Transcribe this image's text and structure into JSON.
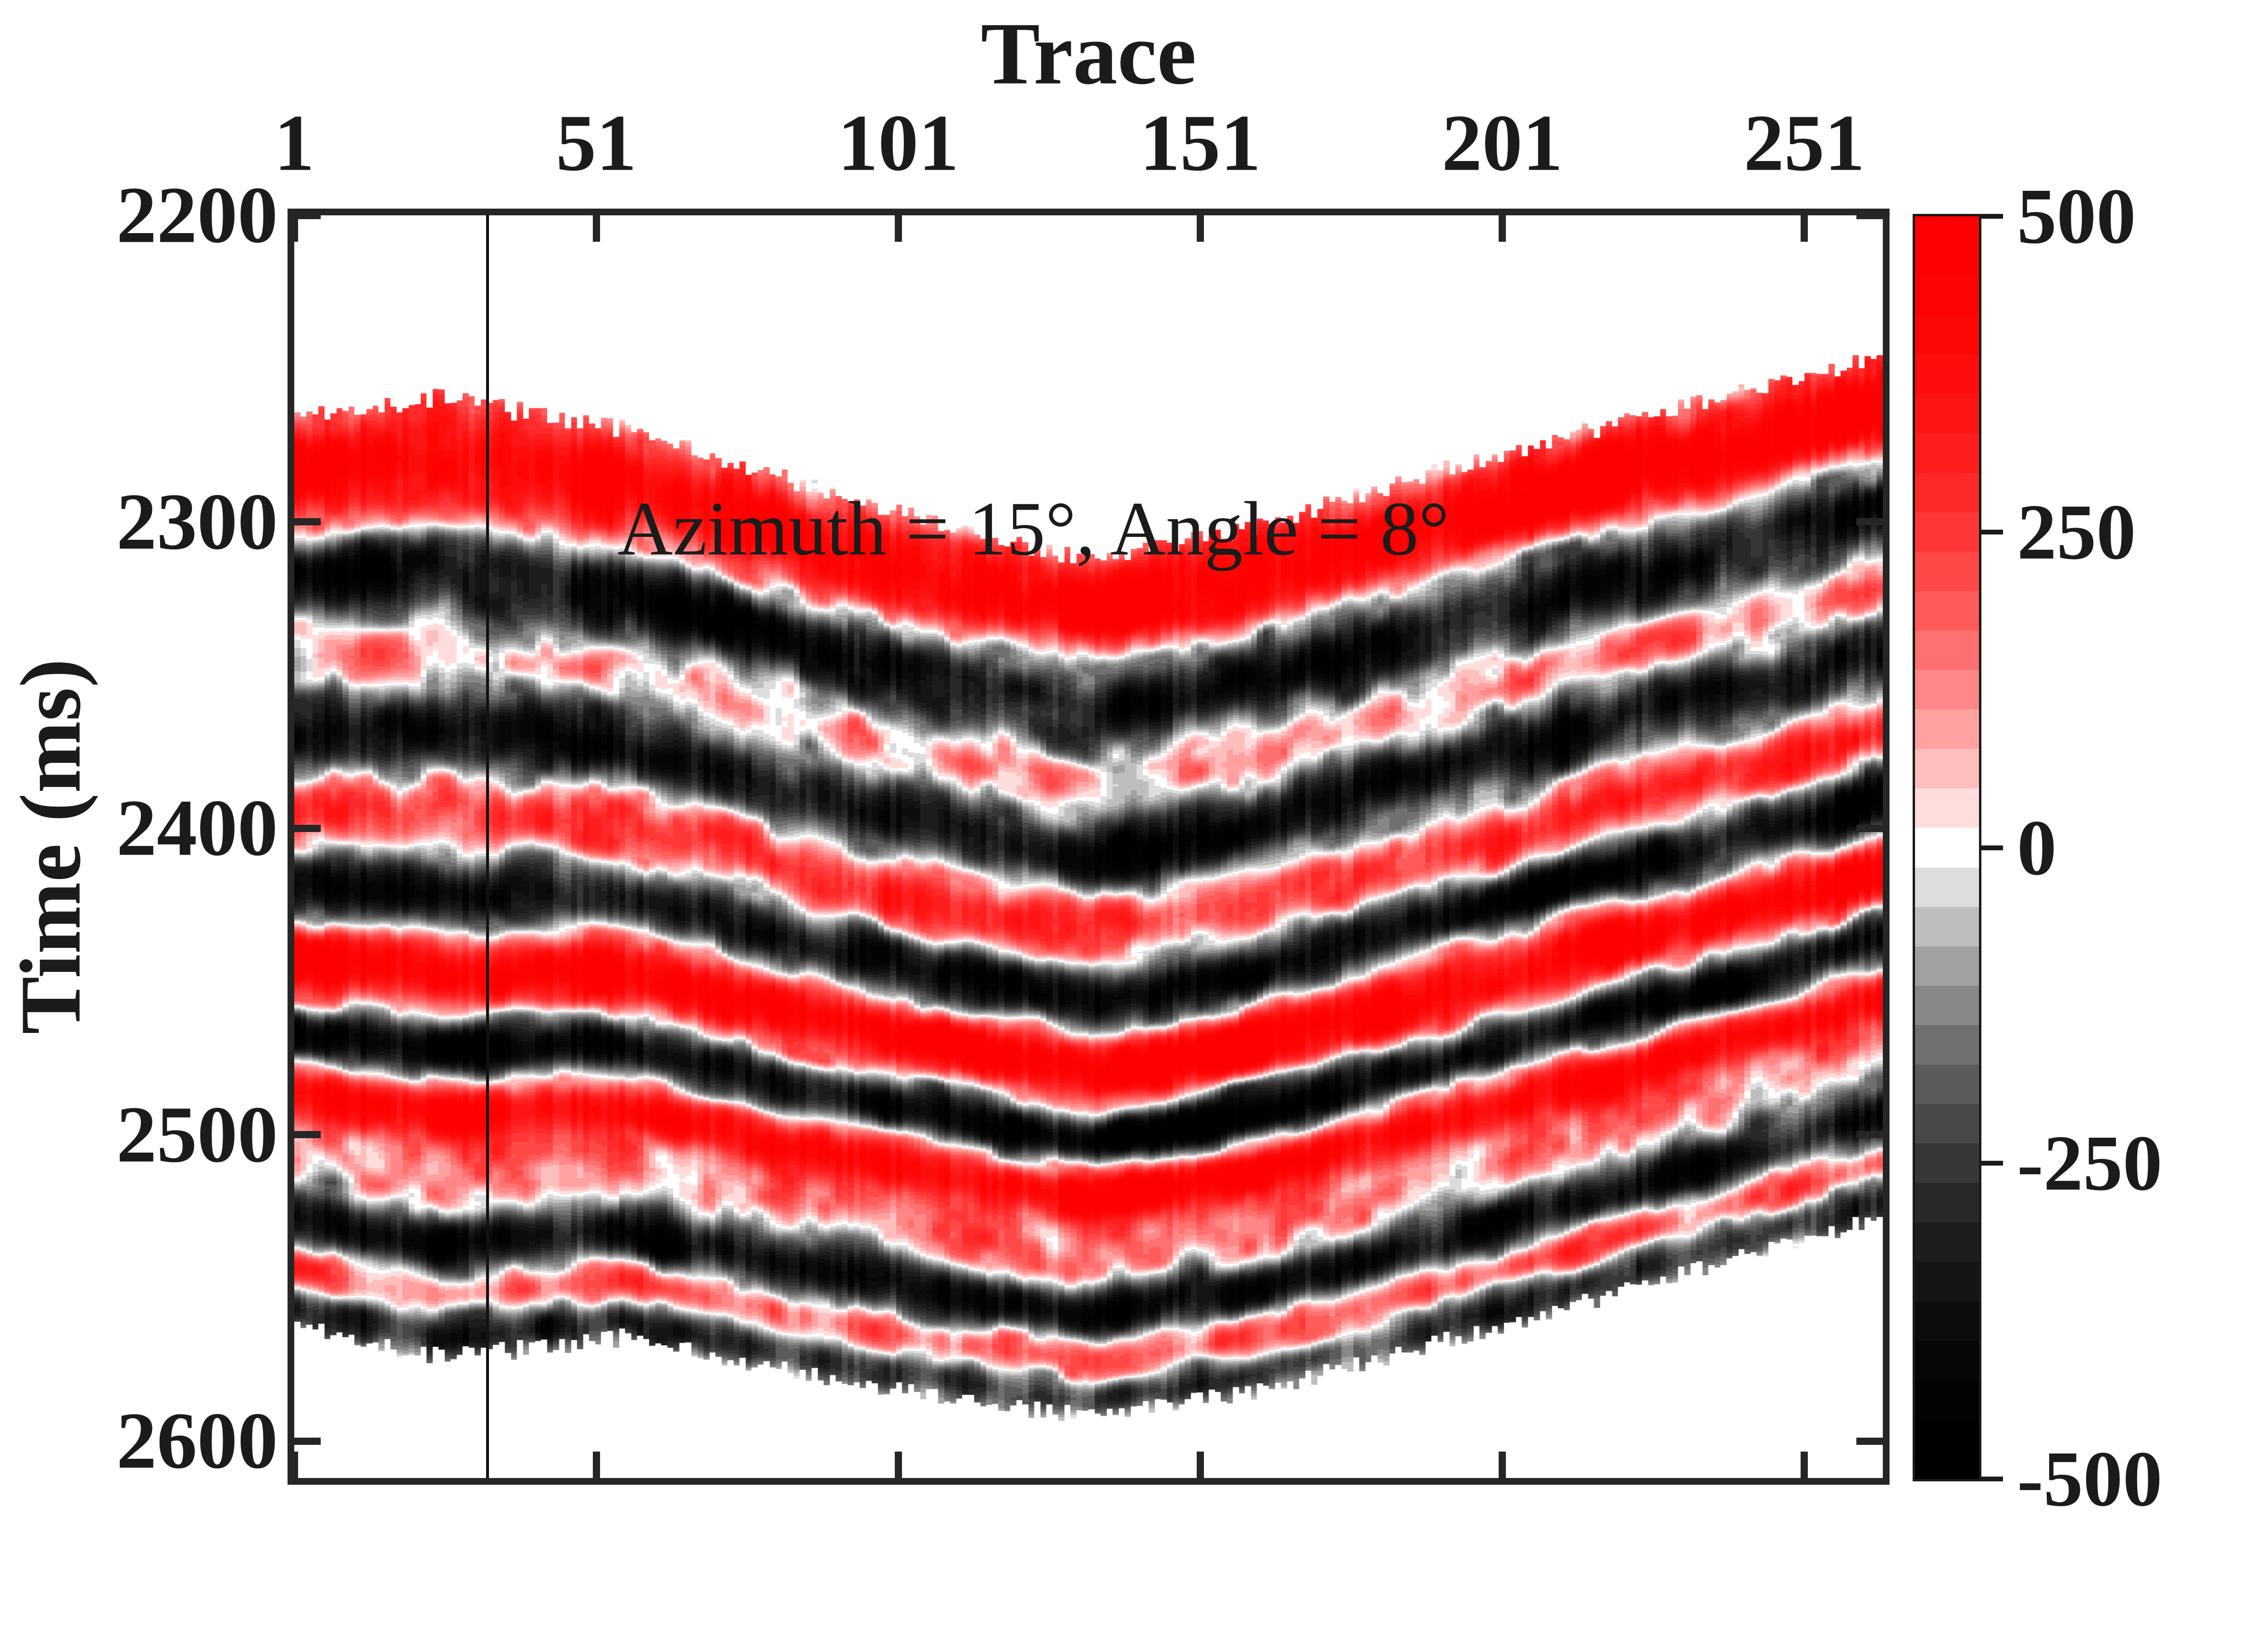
{
  "figure": {
    "background": "#ffffff"
  },
  "title": {
    "text": "Trace"
  },
  "axes": {
    "x_label": "Trace",
    "y_label": "Time (ms)",
    "x_tick_labels": [
      "1",
      "51",
      "101",
      "151",
      "201",
      "251"
    ],
    "x_tick_values": [
      1,
      51,
      101,
      151,
      201,
      251
    ],
    "y_tick_labels": [
      "2200",
      "2300",
      "2400",
      "2500",
      "2600"
    ],
    "y_tick_values": [
      2200,
      2300,
      2400,
      2500,
      2600
    ],
    "xlim": [
      1,
      264
    ],
    "ylim": [
      2200,
      2612
    ]
  },
  "annotation": {
    "text": "Azimuth = 15°, Angle = 8°"
  },
  "cursor": {
    "trace": 33
  },
  "colorbar": {
    "tick_labels": [
      "500",
      "250",
      "0",
      "-250",
      "-500"
    ],
    "tick_values": [
      500,
      250,
      0,
      -250,
      -500
    ],
    "limits": [
      -500,
      500
    ],
    "steps": 32,
    "max_color": "#ff0000",
    "zero_color": "#ffffff",
    "min_color": "#000000"
  },
  "chart_data": {
    "type": "heatmap",
    "title": "Trace",
    "xlabel": "Trace",
    "ylabel": "Time (ms)",
    "x_range": [
      1,
      264
    ],
    "y_range_ms": [
      2200,
      2612
    ],
    "amplitude_range": [
      -500,
      500
    ],
    "annotation": "Azimuth = 15°, Angle = 8°",
    "colormap": "red-white-black (positive red, zero white, negative black), 32 discrete steps",
    "structure": "seismic reflector package between ~2250 and ~2590 ms forming a syncline with vertex near trace 133; limbs rise ~50 ms toward trace 1 and ~68 ms toward trace 264; thin vertical cursor line highlights trace 33",
    "horizon_top_ms": [
      [
        1,
        2270
      ],
      [
        25,
        2264
      ],
      [
        55,
        2274
      ],
      [
        85,
        2292
      ],
      [
        110,
        2306
      ],
      [
        133,
        2317
      ],
      [
        160,
        2306
      ],
      [
        190,
        2288
      ],
      [
        220,
        2272
      ],
      [
        245,
        2260
      ],
      [
        264,
        2250
      ]
    ],
    "horizon_bottom_ms": [
      [
        1,
        2556
      ],
      [
        25,
        2566
      ],
      [
        55,
        2560
      ],
      [
        85,
        2572
      ],
      [
        110,
        2580
      ],
      [
        133,
        2586
      ],
      [
        160,
        2578
      ],
      [
        200,
        2557
      ],
      [
        230,
        2540
      ],
      [
        264,
        2521
      ]
    ],
    "flattened_range_ms": [
      2317,
      2586
    ],
    "reflectors": [
      {
        "u": 2330,
        "amp": 500,
        "w": 17
      },
      {
        "u": 2362,
        "amp": -400,
        "w": 15
      },
      {
        "u": 2387,
        "amp": 150,
        "w": 10
      },
      {
        "u": 2410,
        "amp": -380,
        "w": 14
      },
      {
        "u": 2434,
        "amp": 300,
        "w": 12
      },
      {
        "u": 2457,
        "amp": -430,
        "w": 12
      },
      {
        "u": 2480,
        "amp": 500,
        "w": 14
      },
      {
        "u": 2502,
        "amp": -500,
        "w": 11
      },
      {
        "u": 2520,
        "amp": 450,
        "w": 10
      },
      {
        "u": 2540,
        "amp": 120,
        "w": 12
      },
      {
        "u": 2559,
        "amp": -380,
        "w": 11
      },
      {
        "u": 2574,
        "amp": 260,
        "w": 8
      },
      {
        "u": 2586,
        "amp": -300,
        "w": 8
      }
    ]
  }
}
